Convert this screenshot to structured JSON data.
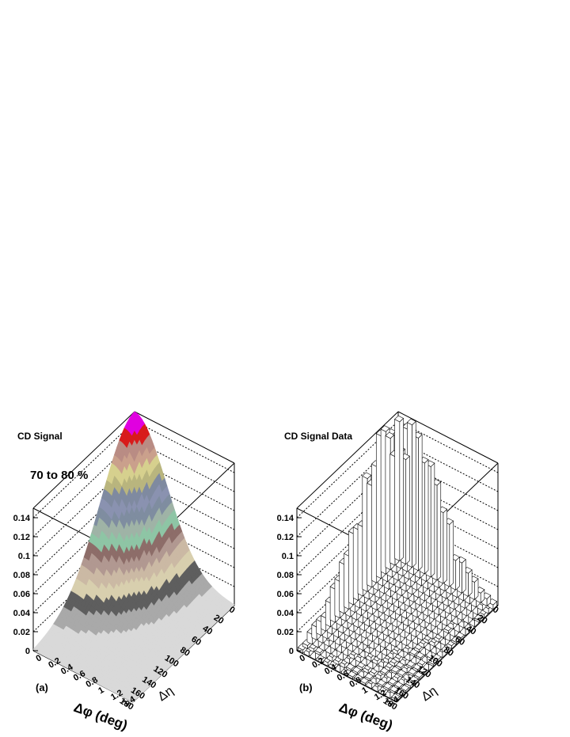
{
  "chart_data": [
    {
      "type": "surface",
      "title": "CD Signal",
      "annotation": "70 to 80 %",
      "panel_label": "(a)",
      "xlabel": "Δφ (deg)",
      "ylabel": "Δη",
      "x_ticks": [
        "0",
        "20",
        "40",
        "60",
        "80",
        "100",
        "120",
        "140",
        "160",
        "180"
      ],
      "y_ticks": [
        "0",
        "0.2",
        "0.4",
        "0.6",
        "0.8",
        "1",
        "1.2",
        "1.4"
      ],
      "z_ticks": [
        "0",
        "0.02",
        "0.04",
        "0.06",
        "0.08",
        "0.1",
        "0.12",
        "0.14"
      ],
      "xlim": [
        0,
        180
      ],
      "ylim": [
        0,
        1.6
      ],
      "zlim": [
        0,
        0.15
      ],
      "peak": {
        "dphi": 0,
        "deta": 0,
        "value": 0.15
      },
      "band_colors": [
        "#d9d9d9",
        "#a9a9a9",
        "#5e5e5e",
        "#d8cfae",
        "#cbb9a4",
        "#b19891",
        "#8d6d69",
        "#8ec5a5",
        "#9fb3a6",
        "#7f8da0",
        "#8a92b0",
        "#7f8aa0",
        "#b9b57e",
        "#d6d08e",
        "#caa08c",
        "#b98c84",
        "#d81b1b",
        "#e000e0"
      ]
    },
    {
      "type": "lego",
      "title": "CD Signal Data",
      "panel_label": "(b)",
      "xlabel": "Δφ (deg)",
      "ylabel": "Δη",
      "x_ticks": [
        "0",
        "20",
        "40",
        "60",
        "80",
        "100",
        "120",
        "140",
        "160",
        "180"
      ],
      "y_ticks": [
        "0",
        "0.2",
        "0.4",
        "0.6",
        "0.8",
        "1",
        "1.2",
        "1.4"
      ],
      "z_ticks": [
        "0",
        "0.02",
        "0.04",
        "0.06",
        "0.08",
        "0.1",
        "0.12",
        "0.14"
      ],
      "xlim": [
        0,
        180
      ],
      "ylim": [
        0,
        1.6
      ],
      "zlim": [
        0,
        0.15
      ],
      "peak": {
        "dphi": 0,
        "deta": 0,
        "value": 0.15
      }
    }
  ]
}
